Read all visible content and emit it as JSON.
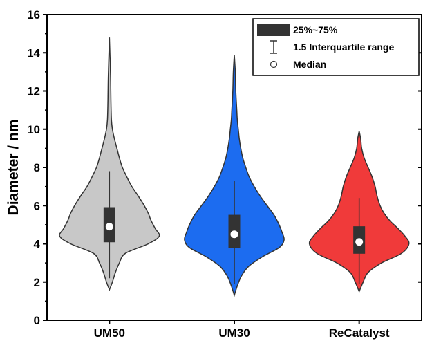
{
  "chart_data": {
    "type": "violin",
    "ylabel": "Diameter / nm",
    "xlabel": "",
    "ylim": [
      0,
      16
    ],
    "yticks": [
      0,
      2,
      4,
      6,
      8,
      10,
      12,
      14,
      16
    ],
    "categories": [
      "UM50",
      "UM30",
      "ReCatalyst"
    ],
    "series": [
      {
        "category": "UM50",
        "color": "#c8c8c8",
        "min": 1.6,
        "max": 14.8,
        "whisker_low": 2.2,
        "whisker_high": 7.8,
        "q1": 4.1,
        "q3": 5.9,
        "median": 4.9,
        "density": [
          [
            1.6,
            0.0
          ],
          [
            2.0,
            0.06
          ],
          [
            2.5,
            0.12
          ],
          [
            3.0,
            0.2
          ],
          [
            3.5,
            0.32
          ],
          [
            4.0,
            0.78
          ],
          [
            4.4,
            1.0
          ],
          [
            4.8,
            0.92
          ],
          [
            5.2,
            0.84
          ],
          [
            5.6,
            0.78
          ],
          [
            6.0,
            0.7
          ],
          [
            6.5,
            0.58
          ],
          [
            7.0,
            0.45
          ],
          [
            7.5,
            0.35
          ],
          [
            8.0,
            0.26
          ],
          [
            8.5,
            0.2
          ],
          [
            9.0,
            0.15
          ],
          [
            9.5,
            0.1
          ],
          [
            10.0,
            0.06
          ],
          [
            10.5,
            0.04
          ],
          [
            11.5,
            0.03
          ],
          [
            12.5,
            0.025
          ],
          [
            13.5,
            0.015
          ],
          [
            14.8,
            0.0
          ]
        ]
      },
      {
        "category": "UM30",
        "color": "#1c6cf0",
        "min": 1.3,
        "max": 13.9,
        "whisker_low": 1.9,
        "whisker_high": 7.3,
        "q1": 3.8,
        "q3": 5.5,
        "median": 4.5,
        "density": [
          [
            1.3,
            0.0
          ],
          [
            1.8,
            0.06
          ],
          [
            2.3,
            0.14
          ],
          [
            2.8,
            0.28
          ],
          [
            3.3,
            0.55
          ],
          [
            3.8,
            0.9
          ],
          [
            4.2,
            1.0
          ],
          [
            4.6,
            0.96
          ],
          [
            5.0,
            0.9
          ],
          [
            5.5,
            0.8
          ],
          [
            6.0,
            0.66
          ],
          [
            6.5,
            0.52
          ],
          [
            7.0,
            0.4
          ],
          [
            7.5,
            0.3
          ],
          [
            8.0,
            0.23
          ],
          [
            8.5,
            0.17
          ],
          [
            9.0,
            0.13
          ],
          [
            9.5,
            0.1
          ],
          [
            10.0,
            0.08
          ],
          [
            10.5,
            0.06
          ],
          [
            11.0,
            0.05
          ],
          [
            12.0,
            0.03
          ],
          [
            13.0,
            0.02
          ],
          [
            13.9,
            0.0
          ]
        ]
      },
      {
        "category": "ReCatalyst",
        "color": "#f03a3a",
        "min": 1.5,
        "max": 9.9,
        "whisker_low": 1.9,
        "whisker_high": 6.4,
        "q1": 3.5,
        "q3": 4.9,
        "median": 4.1,
        "density": [
          [
            1.5,
            0.0
          ],
          [
            2.0,
            0.08
          ],
          [
            2.5,
            0.18
          ],
          [
            3.0,
            0.45
          ],
          [
            3.5,
            0.85
          ],
          [
            4.0,
            1.0
          ],
          [
            4.4,
            0.92
          ],
          [
            4.8,
            0.78
          ],
          [
            5.2,
            0.62
          ],
          [
            5.6,
            0.5
          ],
          [
            6.0,
            0.42
          ],
          [
            6.5,
            0.36
          ],
          [
            7.0,
            0.32
          ],
          [
            7.5,
            0.26
          ],
          [
            8.0,
            0.18
          ],
          [
            8.5,
            0.1
          ],
          [
            9.0,
            0.05
          ],
          [
            9.5,
            0.03
          ],
          [
            9.9,
            0.0
          ]
        ]
      }
    ],
    "legend": {
      "position": "top-right",
      "items": [
        {
          "label": "25%~75%",
          "symbol": "box"
        },
        {
          "label": "1.5 Interquartile range",
          "symbol": "whisker"
        },
        {
          "label": "Median",
          "symbol": "circle"
        }
      ]
    },
    "grid": false
  }
}
